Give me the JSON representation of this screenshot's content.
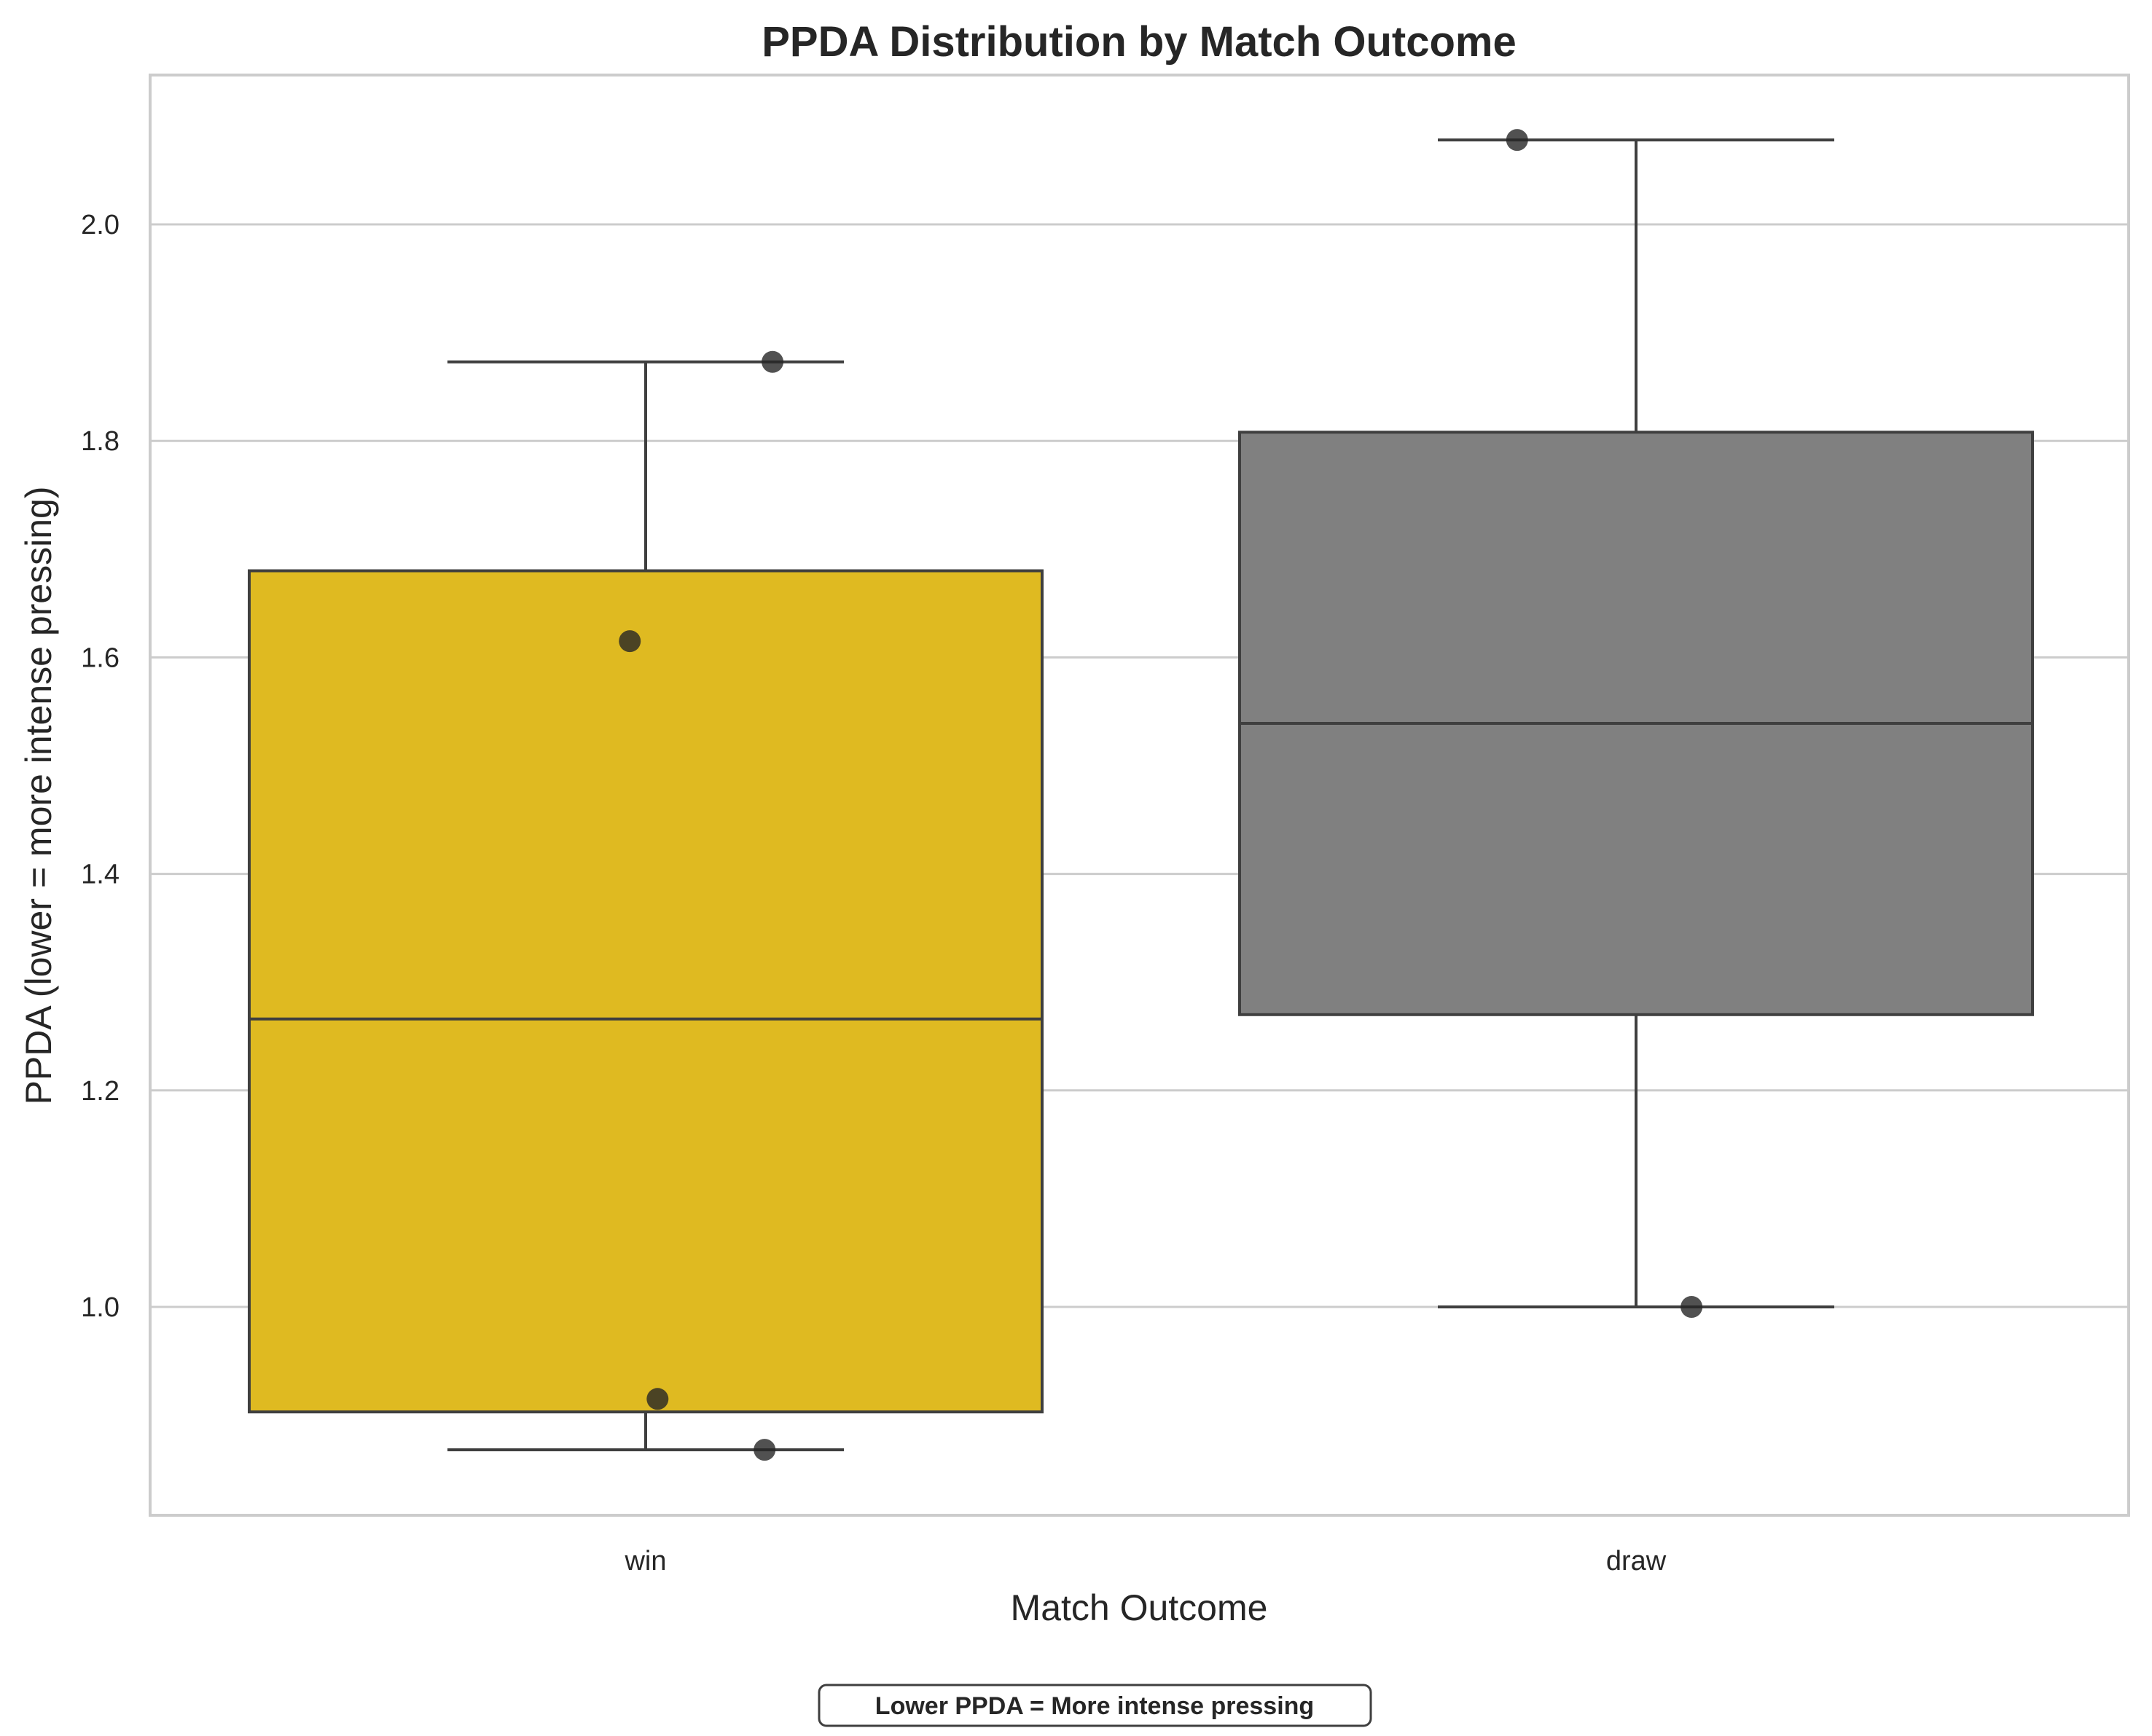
{
  "chart_data": {
    "type": "box",
    "title": "PPDA Distribution by Match Outcome",
    "xlabel": "Match Outcome",
    "ylabel": "PPDA (lower = more intense pressing)",
    "ylim": [
      0.81,
      2.14
    ],
    "yticks": [
      1.0,
      1.2,
      1.4,
      1.6,
      1.8,
      2.0
    ],
    "ytick_labels": [
      "1.0",
      "1.2",
      "1.4",
      "1.6",
      "1.8",
      "2.0"
    ],
    "grid": true,
    "categories": [
      "win",
      "draw"
    ],
    "boxes": [
      {
        "category": "win",
        "color": "#dfba21",
        "whisker_low": 0.868,
        "q1": 0.903,
        "median": 1.266,
        "q3": 1.68,
        "whisker_high": 1.873,
        "points": [
          1.873,
          1.615,
          0.915,
          0.868
        ],
        "point_offsets": [
          0.16,
          -0.02,
          0.015,
          0.15
        ]
      },
      {
        "category": "draw",
        "color": "#808080",
        "whisker_low": 1.0,
        "q1": 1.27,
        "median": 1.539,
        "q3": 1.808,
        "whisker_high": 2.078,
        "points": [
          2.078,
          1.0
        ],
        "point_offsets": [
          -0.15,
          0.07
        ]
      }
    ],
    "annotation": "Lower PPDA = More intense pressing"
  },
  "colors": {
    "grid": "#cccccc",
    "box_edge": "#3f3f3f",
    "points": "#262626"
  }
}
